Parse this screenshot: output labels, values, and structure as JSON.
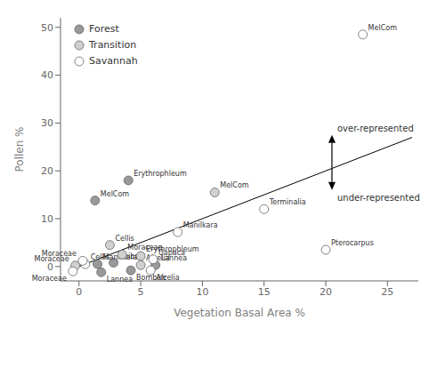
{
  "chart_data": {
    "type": "scatter",
    "xlabel": "Vegetation Basal Area %",
    "ylabel": "Pollen %",
    "xlim": [
      -1.5,
      27.5
    ],
    "ylim": [
      -3,
      52
    ],
    "xticks": [
      0,
      5,
      10,
      15,
      20,
      25
    ],
    "yticks": [
      0,
      10,
      20,
      30,
      40,
      50
    ],
    "legend": "upper left",
    "series": [
      {
        "name": "Forest",
        "color": "#999999",
        "values": [
          {
            "x": 1.3,
            "y": 13.8,
            "label": "MelCom"
          },
          {
            "x": 4.0,
            "y": 18.0,
            "label": "Erythrophleum"
          },
          {
            "x": 2.8,
            "y": 0.8,
            "label": "Ceiba"
          },
          {
            "x": 4.2,
            "y": -0.8,
            "label": "Bombax"
          },
          {
            "x": 6.2,
            "y": 0.3,
            "label": "Lannea"
          },
          {
            "x": 1.5,
            "y": 0.5,
            "label": "Manilkara"
          },
          {
            "x": 1.8,
            "y": -1.2,
            "label": "Lannea"
          }
        ]
      },
      {
        "name": "Transition",
        "color": "#d0d0d0",
        "values": [
          {
            "x": 11.0,
            "y": 15.5,
            "label": "MelCom"
          },
          {
            "x": 2.5,
            "y": 4.5,
            "label": "Cellis"
          },
          {
            "x": 3.5,
            "y": 2.5,
            "label": "Moraceae"
          },
          {
            "x": 5.0,
            "y": 2.2,
            "label": "Erythrophleum"
          },
          {
            "x": 5.0,
            "y": 0.3,
            "label": "Afzelia"
          },
          {
            "x": -0.3,
            "y": 0.2,
            "label": "Moraceae"
          }
        ]
      },
      {
        "name": "Savannah",
        "color": "#ffffff",
        "values": [
          {
            "x": 23.0,
            "y": 48.5,
            "label": "MelCom"
          },
          {
            "x": 15.0,
            "y": 12.0,
            "label": "Terminalia"
          },
          {
            "x": 8.0,
            "y": 7.2,
            "label": "Manilkara"
          },
          {
            "x": 20.0,
            "y": 3.5,
            "label": "Pterocarpus"
          },
          {
            "x": 6.0,
            "y": 1.5,
            "label": "Uapaca"
          },
          {
            "x": 5.8,
            "y": -0.8,
            "label": "Afzelia"
          },
          {
            "x": 0.5,
            "y": 0.5,
            "label": "Cellis"
          },
          {
            "x": 0.3,
            "y": 1.2,
            "label": "Moraceae"
          },
          {
            "x": -0.5,
            "y": -1.0,
            "label": "Moraceae"
          }
        ]
      }
    ],
    "reference_line": {
      "x": [
        0,
        27
      ],
      "y": [
        0,
        27
      ]
    },
    "arrows": [
      {
        "x": 20.5,
        "y_from": 21.5,
        "y_to": 27.5,
        "text": "over-represented"
      },
      {
        "x": 20.5,
        "y_from": 21.5,
        "y_to": 16.0,
        "text": "under-represented"
      }
    ]
  }
}
